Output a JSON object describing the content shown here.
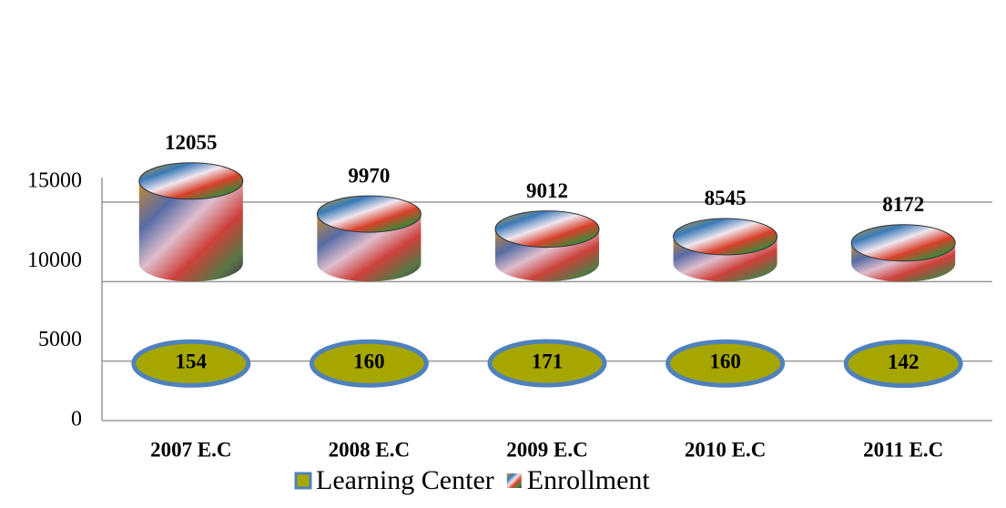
{
  "chart_data": {
    "type": "stacked-cylinder",
    "categories": [
      "2007 E.C",
      "2008 E.C",
      "2009 E.C",
      "2010 E.C",
      "2011 E.C"
    ],
    "series": [
      {
        "name": "Learning Center",
        "color": "#a6a600",
        "values": [
          154,
          160,
          171,
          160,
          142
        ]
      },
      {
        "name": "Enrollment",
        "color": "#b0446a",
        "values": [
          12055,
          9970,
          9012,
          8545,
          8172
        ]
      }
    ],
    "ylim": [
      0,
      15000
    ],
    "yticks": [
      0,
      5000,
      10000,
      15000
    ],
    "grid": true,
    "legend": "bottom"
  }
}
